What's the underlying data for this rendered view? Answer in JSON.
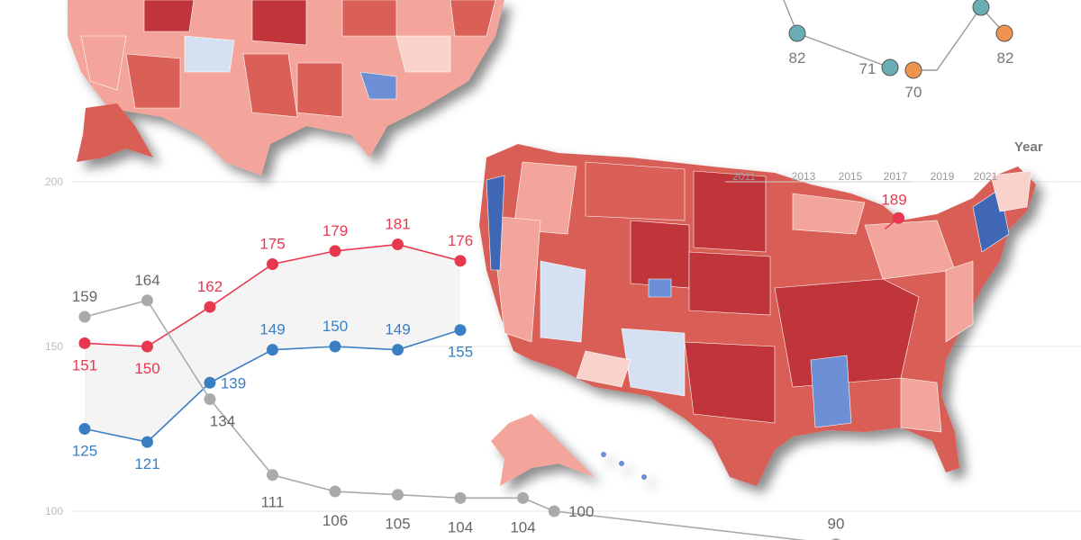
{
  "chart_data": {
    "type": "line",
    "yticks": [
      100,
      150,
      200
    ],
    "ylim": [
      100,
      200
    ],
    "xlabel": "Year",
    "year_ticks": [
      "2011",
      "2013",
      "2015",
      "2017",
      "2019",
      "2021"
    ],
    "series": [
      {
        "color": "#e8384f",
        "points": [
          [
            0,
            151
          ],
          [
            1,
            150
          ],
          [
            2,
            162
          ],
          [
            3,
            175
          ],
          [
            4,
            179
          ],
          [
            5,
            181
          ],
          [
            6,
            176
          ],
          [
            13,
            189
          ]
        ]
      },
      {
        "color": "#3a7fc4",
        "points": [
          [
            0,
            125
          ],
          [
            1,
            121
          ],
          [
            2,
            139
          ],
          [
            3,
            149
          ],
          [
            4,
            150
          ],
          [
            5,
            149
          ],
          [
            6,
            155
          ]
        ]
      },
      {
        "color": "#aaaaaa",
        "points": [
          [
            0,
            159
          ],
          [
            1,
            164
          ],
          [
            2,
            134
          ],
          [
            3,
            111
          ],
          [
            4,
            106
          ],
          [
            5,
            105
          ],
          [
            6,
            104
          ],
          [
            7,
            104
          ],
          [
            7.5,
            100
          ],
          [
            12,
            90
          ]
        ]
      }
    ],
    "inset": {
      "teal": {
        "color": "#6aadb5",
        "labels": [
          "82",
          "71"
        ]
      },
      "orange": {
        "color": "#ef9350",
        "labels": [
          "70",
          "82"
        ]
      }
    }
  },
  "map": {
    "colors": {
      "dark_red": "#c0353a",
      "red": "#d95f57",
      "light_red": "#f4a59b",
      "pale": "#f9d2cc",
      "pale_blue": "#d6e0f3",
      "blue": "#6c8fd6",
      "dark_blue": "#3f67b5"
    }
  }
}
